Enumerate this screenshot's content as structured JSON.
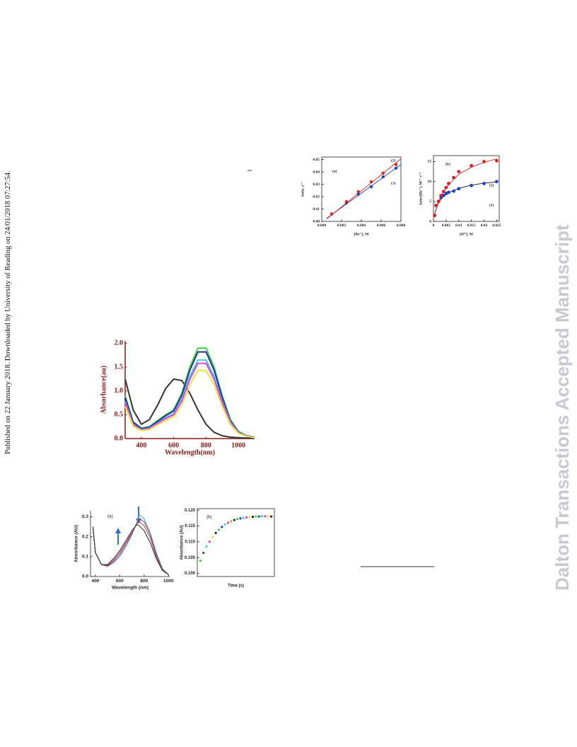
{
  "sidebar": "Published on 22 January 2018. Downloaded by University of Reading on 24/01/2018 07:27:54.",
  "watermark": "Dalton Transactions Accepted Manuscript",
  "chart_data": [
    {
      "type": "scatter",
      "x_label": "[Br⁻], M",
      "y_label": "kobs, s⁻¹",
      "annotations": [
        "(a)"
      ],
      "xlim": [
        0,
        0.008
      ],
      "ylim": [
        0,
        0.052
      ],
      "xticks": [
        {
          "value": 0,
          "label": "0.000"
        },
        {
          "value": 0.002,
          "label": "0.002"
        },
        {
          "value": 0.004,
          "label": "0.004"
        },
        {
          "value": 0.006,
          "label": "0.006"
        },
        {
          "value": 0.008,
          "label": "0.008"
        }
      ],
      "yticks": [
        {
          "value": 0,
          "label": "0.00"
        },
        {
          "value": 0.01,
          "label": "0.01"
        },
        {
          "value": 0.02,
          "label": "0.02"
        },
        {
          "value": 0.03,
          "label": "0.03"
        },
        {
          "value": 0.04,
          "label": "0.04"
        },
        {
          "value": 0.05,
          "label": "0.05"
        }
      ],
      "x": [
        0.001,
        0.0025,
        0.0037,
        0.005,
        0.0062,
        0.0075
      ],
      "series": [
        {
          "name": "(1)",
          "color": "#2040d0",
          "values": [
            0.006,
            0.015,
            0.022,
            0.028,
            0.036,
            0.043
          ]
        },
        {
          "name": "(2)",
          "color": "#e02020",
          "values": [
            0.006,
            0.016,
            0.024,
            0.032,
            0.039,
            0.046
          ]
        }
      ],
      "fits": [
        {
          "color": "#2040d0",
          "x": [
            0.0005,
            0.008
          ],
          "values": [
            0.0025,
            0.046
          ]
        },
        {
          "color": "#e02020",
          "x": [
            0.0005,
            0.008
          ],
          "values": [
            0.002,
            0.0505
          ]
        }
      ]
    },
    {
      "type": "scatter",
      "x_label": "[H⁺], M",
      "y_label": "kobs/[Br⁻], M⁻¹ s⁻¹",
      "annotations": [
        "(b)"
      ],
      "xlim": [
        0,
        0.026
      ],
      "ylim": [
        0,
        16.5
      ],
      "xticks": [
        0,
        0.005,
        0.01,
        0.015,
        0.02,
        0.025
      ],
      "yticks": [
        0,
        5,
        10,
        15
      ],
      "x": [
        0.0005,
        0.001,
        0.002,
        0.003,
        0.004,
        0.005,
        0.006,
        0.008,
        0.01,
        0.015,
        0.02,
        0.025
      ],
      "series": [
        {
          "name": "(1)",
          "color": "#2040d0",
          "values": [
            1.5,
            4,
            5,
            6,
            6.5,
            7,
            7.3,
            7.6,
            8.2,
            9,
            9.5,
            10
          ]
        },
        {
          "name": "(2)",
          "color": "#e02020",
          "values": [
            1.5,
            4,
            5,
            6.5,
            7.5,
            8.5,
            9.5,
            11,
            12.5,
            14,
            15,
            15.2
          ]
        }
      ],
      "fits": [
        {
          "color": "#111111",
          "x": [
            0.0005,
            0.002,
            0.004,
            0.006,
            0.01,
            0.015,
            0.02,
            0.025
          ],
          "values": [
            2,
            4.8,
            6.3,
            7.2,
            8.3,
            9.1,
            9.6,
            9.9
          ]
        },
        {
          "color": "#e02020",
          "x": [
            0.0005,
            0.002,
            0.004,
            0.006,
            0.01,
            0.015,
            0.02,
            0.025
          ],
          "values": [
            2,
            5,
            7.5,
            9.3,
            11.8,
            13.6,
            14.8,
            15.7
          ]
        }
      ]
    },
    {
      "type": "line",
      "x_label": "Wavelength(nm)",
      "y_label": "Absorbance(au)",
      "axis_color": "#8b1a1a",
      "xlim": [
        300,
        1100
      ],
      "ylim": [
        0,
        2.05
      ],
      "xticks": [
        400,
        600,
        800,
        1000
      ],
      "yticks": [
        {
          "value": 0,
          "label": "0.0"
        },
        {
          "value": 0.5,
          "label": "0.5"
        },
        {
          "value": 1,
          "label": "1.0"
        },
        {
          "value": 1.5,
          "label": "1.5"
        },
        {
          "value": 2,
          "label": "2.0"
        }
      ],
      "x": [
        300,
        350,
        400,
        450,
        500,
        550,
        600,
        650,
        700,
        750,
        800,
        850,
        900,
        950,
        1000,
        1050,
        1100
      ],
      "series": [
        {
          "color": "#333333",
          "values": [
            1.25,
            0.6,
            0.3,
            0.4,
            0.7,
            1.05,
            1.25,
            1.22,
            0.95,
            0.6,
            0.3,
            0.13,
            0.06,
            0.03,
            0.02,
            0.01,
            0.01
          ]
        },
        {
          "color": "#40d040",
          "values": [
            0.9,
            0.35,
            0.22,
            0.25,
            0.38,
            0.5,
            0.6,
            0.95,
            1.5,
            1.9,
            1.9,
            1.5,
            0.9,
            0.4,
            0.15,
            0.06,
            0.03
          ]
        },
        {
          "color": "#2030a0",
          "values": [
            0.86,
            0.34,
            0.21,
            0.24,
            0.36,
            0.48,
            0.58,
            0.91,
            1.44,
            1.82,
            1.82,
            1.44,
            0.86,
            0.38,
            0.14,
            0.06,
            0.03
          ]
        },
        {
          "color": "#40d0e0",
          "values": [
            0.78,
            0.3,
            0.19,
            0.22,
            0.33,
            0.44,
            0.52,
            0.83,
            1.31,
            1.65,
            1.65,
            1.31,
            0.78,
            0.35,
            0.13,
            0.05,
            0.03
          ]
        },
        {
          "color": "#e040e0",
          "values": [
            0.75,
            0.29,
            0.18,
            0.21,
            0.32,
            0.42,
            0.5,
            0.79,
            1.25,
            1.58,
            1.58,
            1.25,
            0.75,
            0.33,
            0.12,
            0.05,
            0.02
          ]
        },
        {
          "color": "#f0e040",
          "values": [
            0.68,
            0.26,
            0.17,
            0.19,
            0.29,
            0.38,
            0.45,
            0.71,
            1.13,
            1.43,
            1.43,
            1.13,
            0.68,
            0.3,
            0.11,
            0.05,
            0.02
          ]
        }
      ]
    },
    {
      "type": "line",
      "x_label": "Wavelength (nm)",
      "y_label": "Absorbance (AU)",
      "annotations": [
        "(a)"
      ],
      "xlim": [
        360,
        1010
      ],
      "ylim": [
        0,
        0.33
      ],
      "xticks": [
        400,
        600,
        800,
        1000
      ],
      "yticks": [
        {
          "value": 0,
          "label": "0.0"
        },
        {
          "value": 0.1,
          "label": "0.1"
        },
        {
          "value": 0.2,
          "label": "0.2"
        },
        {
          "value": 0.3,
          "label": "0.3"
        }
      ],
      "x": [
        380,
        400,
        450,
        500,
        550,
        600,
        650,
        700,
        740,
        760,
        800,
        850,
        900,
        950,
        1000
      ],
      "series": [
        {
          "color": "#40a0a0",
          "values": [
            0.25,
            0.12,
            0.06,
            0.05,
            0.07,
            0.1,
            0.15,
            0.21,
            0.27,
            0.31,
            0.29,
            0.22,
            0.12,
            0.04,
            0.01
          ]
        },
        {
          "color": "#8040a0",
          "values": [
            0.25,
            0.12,
            0.06,
            0.053,
            0.075,
            0.11,
            0.16,
            0.215,
            0.27,
            0.29,
            0.275,
            0.21,
            0.11,
            0.035,
            0.01
          ]
        },
        {
          "color": "#c04040",
          "values": [
            0.25,
            0.12,
            0.06,
            0.056,
            0.082,
            0.12,
            0.17,
            0.22,
            0.265,
            0.275,
            0.255,
            0.195,
            0.1,
            0.033,
            0.01
          ]
        },
        {
          "color": "#222222",
          "values": [
            0.25,
            0.12,
            0.06,
            0.06,
            0.09,
            0.13,
            0.18,
            0.23,
            0.26,
            0.255,
            0.23,
            0.17,
            0.09,
            0.03,
            0.01
          ]
        }
      ]
    },
    {
      "type": "scatter",
      "x_label": "Time (s)",
      "y_label": "Absorbance (AU)",
      "annotations": [
        "(b)"
      ],
      "xlim": [
        0,
        25
      ],
      "ylim": [
        0.099,
        0.1205
      ],
      "yticks": [
        {
          "value": 0.1,
          "label": "0.100"
        },
        {
          "value": 0.105,
          "label": "0.105"
        },
        {
          "value": 0.11,
          "label": "0.110"
        },
        {
          "value": 0.115,
          "label": "0.115"
        },
        {
          "value": 0.12,
          "label": "0.120"
        }
      ],
      "x": [
        1,
        2,
        3,
        4,
        5,
        6,
        7,
        8,
        9,
        10,
        11,
        12,
        13,
        14,
        15,
        16,
        17,
        18,
        19,
        20,
        21,
        22,
        23,
        24
      ],
      "series": [
        {
          "colors": [
            "#40d040",
            "#2040d0",
            "#40d0e0",
            "#e040e0",
            "#f0e040",
            "#222222",
            "#40d040",
            "#2040d0",
            "#40d0e0",
            "#e040e0",
            "#c0a020",
            "#222222",
            "#40d040",
            "#2040d0",
            "#40d0e0",
            "#e040e0",
            "#f0e040",
            "#222222",
            "#40d040",
            "#2040d0",
            "#40d0e0",
            "#e040e0",
            "#f0e040",
            "#222222"
          ],
          "values": [
            0.104,
            0.1065,
            0.1085,
            0.11,
            0.1115,
            0.1128,
            0.1138,
            0.1147,
            0.1155,
            0.116,
            0.1165,
            0.1169,
            0.1172,
            0.1174,
            0.1176,
            0.1177,
            0.1178,
            0.1179,
            0.118,
            0.118,
            0.1181,
            0.1181,
            0.118,
            0.118
          ]
        }
      ]
    }
  ]
}
